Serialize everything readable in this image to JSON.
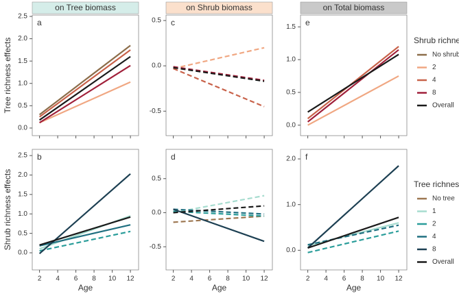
{
  "xlabel": "Age",
  "row_labels": [
    "Tree richness effects",
    "Shrub richness effects"
  ],
  "legends": [
    {
      "title": "Shrub richness",
      "entries": [
        {
          "name": "No shrub",
          "color": "#8c6d4a"
        },
        {
          "name": "2",
          "color": "#f0a782"
        },
        {
          "name": "4",
          "color": "#c8624a"
        },
        {
          "name": "8",
          "color": "#a0203a"
        },
        {
          "name": "Overall",
          "color": "#1a1a1a"
        }
      ]
    },
    {
      "title": "Tree richness",
      "entries": [
        {
          "name": "No tree",
          "color": "#9c7650"
        },
        {
          "name": "1",
          "color": "#a6dccf"
        },
        {
          "name": "2",
          "color": "#2a9d9a"
        },
        {
          "name": "4",
          "color": "#1f6f80"
        },
        {
          "name": "8",
          "color": "#1c3f52"
        },
        {
          "name": "Overall",
          "color": "#1a1a1a"
        }
      ]
    }
  ],
  "chart_data": [
    {
      "type": "line",
      "strip": "on Tree biomass",
      "strip_color": "#d5ede9",
      "letter": "a",
      "xlim": [
        1.2,
        12.9
      ],
      "xticks": [
        2,
        4,
        6,
        8,
        10,
        12
      ],
      "ylim": [
        -0.17,
        2.53
      ],
      "yticks": [
        {
          "value": 0,
          "label": "0.0"
        },
        0.5,
        {
          "value": 1,
          "label": "1.0"
        },
        1.5,
        {
          "value": 2,
          "label": "2.0"
        },
        2.5
      ],
      "series": [
        {
          "name": "No shrub",
          "color": "#8c6d4a",
          "dashed": false,
          "x": [
            2,
            12
          ],
          "values": [
            0.3,
            1.85
          ]
        },
        {
          "name": "2",
          "color": "#f0a782",
          "dashed": false,
          "x": [
            2,
            12
          ],
          "values": [
            0.12,
            1.03
          ]
        },
        {
          "name": "4",
          "color": "#c8624a",
          "dashed": false,
          "x": [
            2,
            12
          ],
          "values": [
            0.25,
            1.75
          ]
        },
        {
          "name": "8",
          "color": "#a0203a",
          "dashed": false,
          "x": [
            2,
            12
          ],
          "values": [
            0.12,
            1.4
          ]
        },
        {
          "name": "Overall",
          "color": "#1a1a1a",
          "dashed": false,
          "x": [
            2,
            12
          ],
          "values": [
            0.18,
            1.6
          ]
        }
      ]
    },
    {
      "type": "line",
      "strip": "on Shrub biomass",
      "strip_color": "#fbe0cc",
      "letter": "c",
      "xlim": [
        1.2,
        12.9
      ],
      "xticks": [
        2,
        4,
        6,
        8,
        10,
        12
      ],
      "ylim": [
        -0.77,
        0.56
      ],
      "yticks": [
        -0.5,
        {
          "value": 0,
          "label": "0.0"
        },
        0.5
      ],
      "series": [
        {
          "name": "2",
          "color": "#f0a782",
          "dashed": true,
          "x": [
            2,
            12
          ],
          "values": [
            -0.03,
            0.2
          ]
        },
        {
          "name": "4",
          "color": "#c8624a",
          "dashed": true,
          "x": [
            2,
            12
          ],
          "values": [
            -0.03,
            -0.45
          ]
        },
        {
          "name": "8",
          "color": "#a0203a",
          "dashed": true,
          "x": [
            2,
            12
          ],
          "values": [
            -0.01,
            -0.16
          ]
        },
        {
          "name": "Overall",
          "color": "#1a1a1a",
          "dashed": true,
          "x": [
            2,
            12
          ],
          "values": [
            -0.02,
            -0.17
          ]
        }
      ]
    },
    {
      "type": "line",
      "strip": "on Total biomass",
      "strip_color": "#c9c9c9",
      "letter": "e",
      "xlim": [
        1.2,
        12.9
      ],
      "xticks": [
        2,
        4,
        6,
        8,
        10,
        12
      ],
      "ylim": [
        -0.16,
        1.68
      ],
      "yticks": [
        {
          "value": 0,
          "label": "0.0"
        },
        0.5,
        {
          "value": 1,
          "label": "1.0"
        },
        1.5
      ],
      "series": [
        {
          "name": "2",
          "color": "#f0a782",
          "dashed": false,
          "x": [
            2,
            12
          ],
          "values": [
            0.0,
            0.75
          ]
        },
        {
          "name": "4",
          "color": "#c8624a",
          "dashed": false,
          "x": [
            2,
            12
          ],
          "values": [
            0.1,
            1.2
          ]
        },
        {
          "name": "8",
          "color": "#a0203a",
          "dashed": false,
          "x": [
            2,
            12
          ],
          "values": [
            0.05,
            1.15
          ]
        },
        {
          "name": "Overall",
          "color": "#1a1a1a",
          "dashed": false,
          "x": [
            2,
            12
          ],
          "values": [
            0.2,
            1.08
          ]
        }
      ]
    },
    {
      "type": "line",
      "letter": "b",
      "xlim": [
        1.2,
        12.9
      ],
      "xticks": [
        2,
        4,
        6,
        8,
        10,
        12
      ],
      "ylim": [
        -0.44,
        2.66
      ],
      "yticks": [
        {
          "value": 0,
          "label": "0.0"
        },
        0.5,
        {
          "value": 1,
          "label": "1.0"
        },
        1.5,
        {
          "value": 2,
          "label": "2.0"
        },
        2.5
      ],
      "series": [
        {
          "name": "1",
          "color": "#a6dccf",
          "dashed": false,
          "x": [
            2,
            12
          ],
          "values": [
            0.1,
            0.95
          ]
        },
        {
          "name": "2",
          "color": "#2a9d9a",
          "dashed": true,
          "x": [
            2,
            12
          ],
          "values": [
            0.05,
            0.55
          ]
        },
        {
          "name": "4",
          "color": "#1f6f80",
          "dashed": false,
          "x": [
            2,
            12
          ],
          "values": [
            0.18,
            0.72
          ]
        },
        {
          "name": "8",
          "color": "#1c3f52",
          "dashed": false,
          "x": [
            2,
            12
          ],
          "values": [
            -0.02,
            2.03
          ]
        },
        {
          "name": "Overall",
          "color": "#1a1a1a",
          "dashed": false,
          "x": [
            2,
            12
          ],
          "values": [
            0.2,
            0.92
          ]
        }
      ]
    },
    {
      "type": "line",
      "letter": "d",
      "xlim": [
        1.2,
        12.9
      ],
      "xticks": [
        2,
        4,
        6,
        8,
        10,
        12
      ],
      "ylim": [
        -0.84,
        0.93
      ],
      "yticks": [
        -0.5,
        {
          "value": 0,
          "label": "0.0"
        },
        0.5
      ],
      "series": [
        {
          "name": "No tree",
          "color": "#9c7650",
          "dashed": true,
          "x": [
            2,
            12
          ],
          "values": [
            -0.14,
            -0.05
          ]
        },
        {
          "name": "1",
          "color": "#a6dccf",
          "dashed": true,
          "x": [
            2,
            12
          ],
          "values": [
            0.0,
            0.25
          ]
        },
        {
          "name": "2",
          "color": "#2a9d9a",
          "dashed": true,
          "x": [
            2,
            12
          ],
          "values": [
            0.02,
            -0.05
          ]
        },
        {
          "name": "4",
          "color": "#1f6f80",
          "dashed": true,
          "x": [
            2,
            12
          ],
          "values": [
            0.05,
            -0.02
          ]
        },
        {
          "name": "8",
          "color": "#1c3f52",
          "dashed": false,
          "x": [
            2,
            12
          ],
          "values": [
            0.05,
            -0.42
          ]
        },
        {
          "name": "Overall",
          "color": "#1a1a1a",
          "dashed": true,
          "x": [
            2,
            12
          ],
          "values": [
            0.0,
            0.1
          ]
        }
      ]
    },
    {
      "type": "line",
      "letter": "f",
      "xlim": [
        1.2,
        12.9
      ],
      "xticks": [
        2,
        4,
        6,
        8,
        10,
        12
      ],
      "ylim": [
        -0.43,
        2.21
      ],
      "yticks": [
        {
          "value": 0,
          "label": "0.0"
        },
        {
          "value": 1,
          "label": "1.0"
        },
        {
          "value": 2,
          "label": "2.0"
        }
      ],
      "series": [
        {
          "name": "1",
          "color": "#a6dccf",
          "dashed": false,
          "x": [
            2,
            12
          ],
          "values": [
            0.1,
            0.6
          ]
        },
        {
          "name": "2",
          "color": "#2a9d9a",
          "dashed": true,
          "x": [
            2,
            12
          ],
          "values": [
            -0.05,
            0.42
          ]
        },
        {
          "name": "4",
          "color": "#1f6f80",
          "dashed": true,
          "x": [
            2,
            12
          ],
          "values": [
            0.12,
            0.55
          ]
        },
        {
          "name": "8",
          "color": "#1c3f52",
          "dashed": false,
          "x": [
            2,
            12
          ],
          "values": [
            0.05,
            1.85
          ]
        },
        {
          "name": "Overall",
          "color": "#1a1a1a",
          "dashed": false,
          "x": [
            2,
            12
          ],
          "values": [
            0.05,
            0.72
          ]
        }
      ]
    }
  ]
}
